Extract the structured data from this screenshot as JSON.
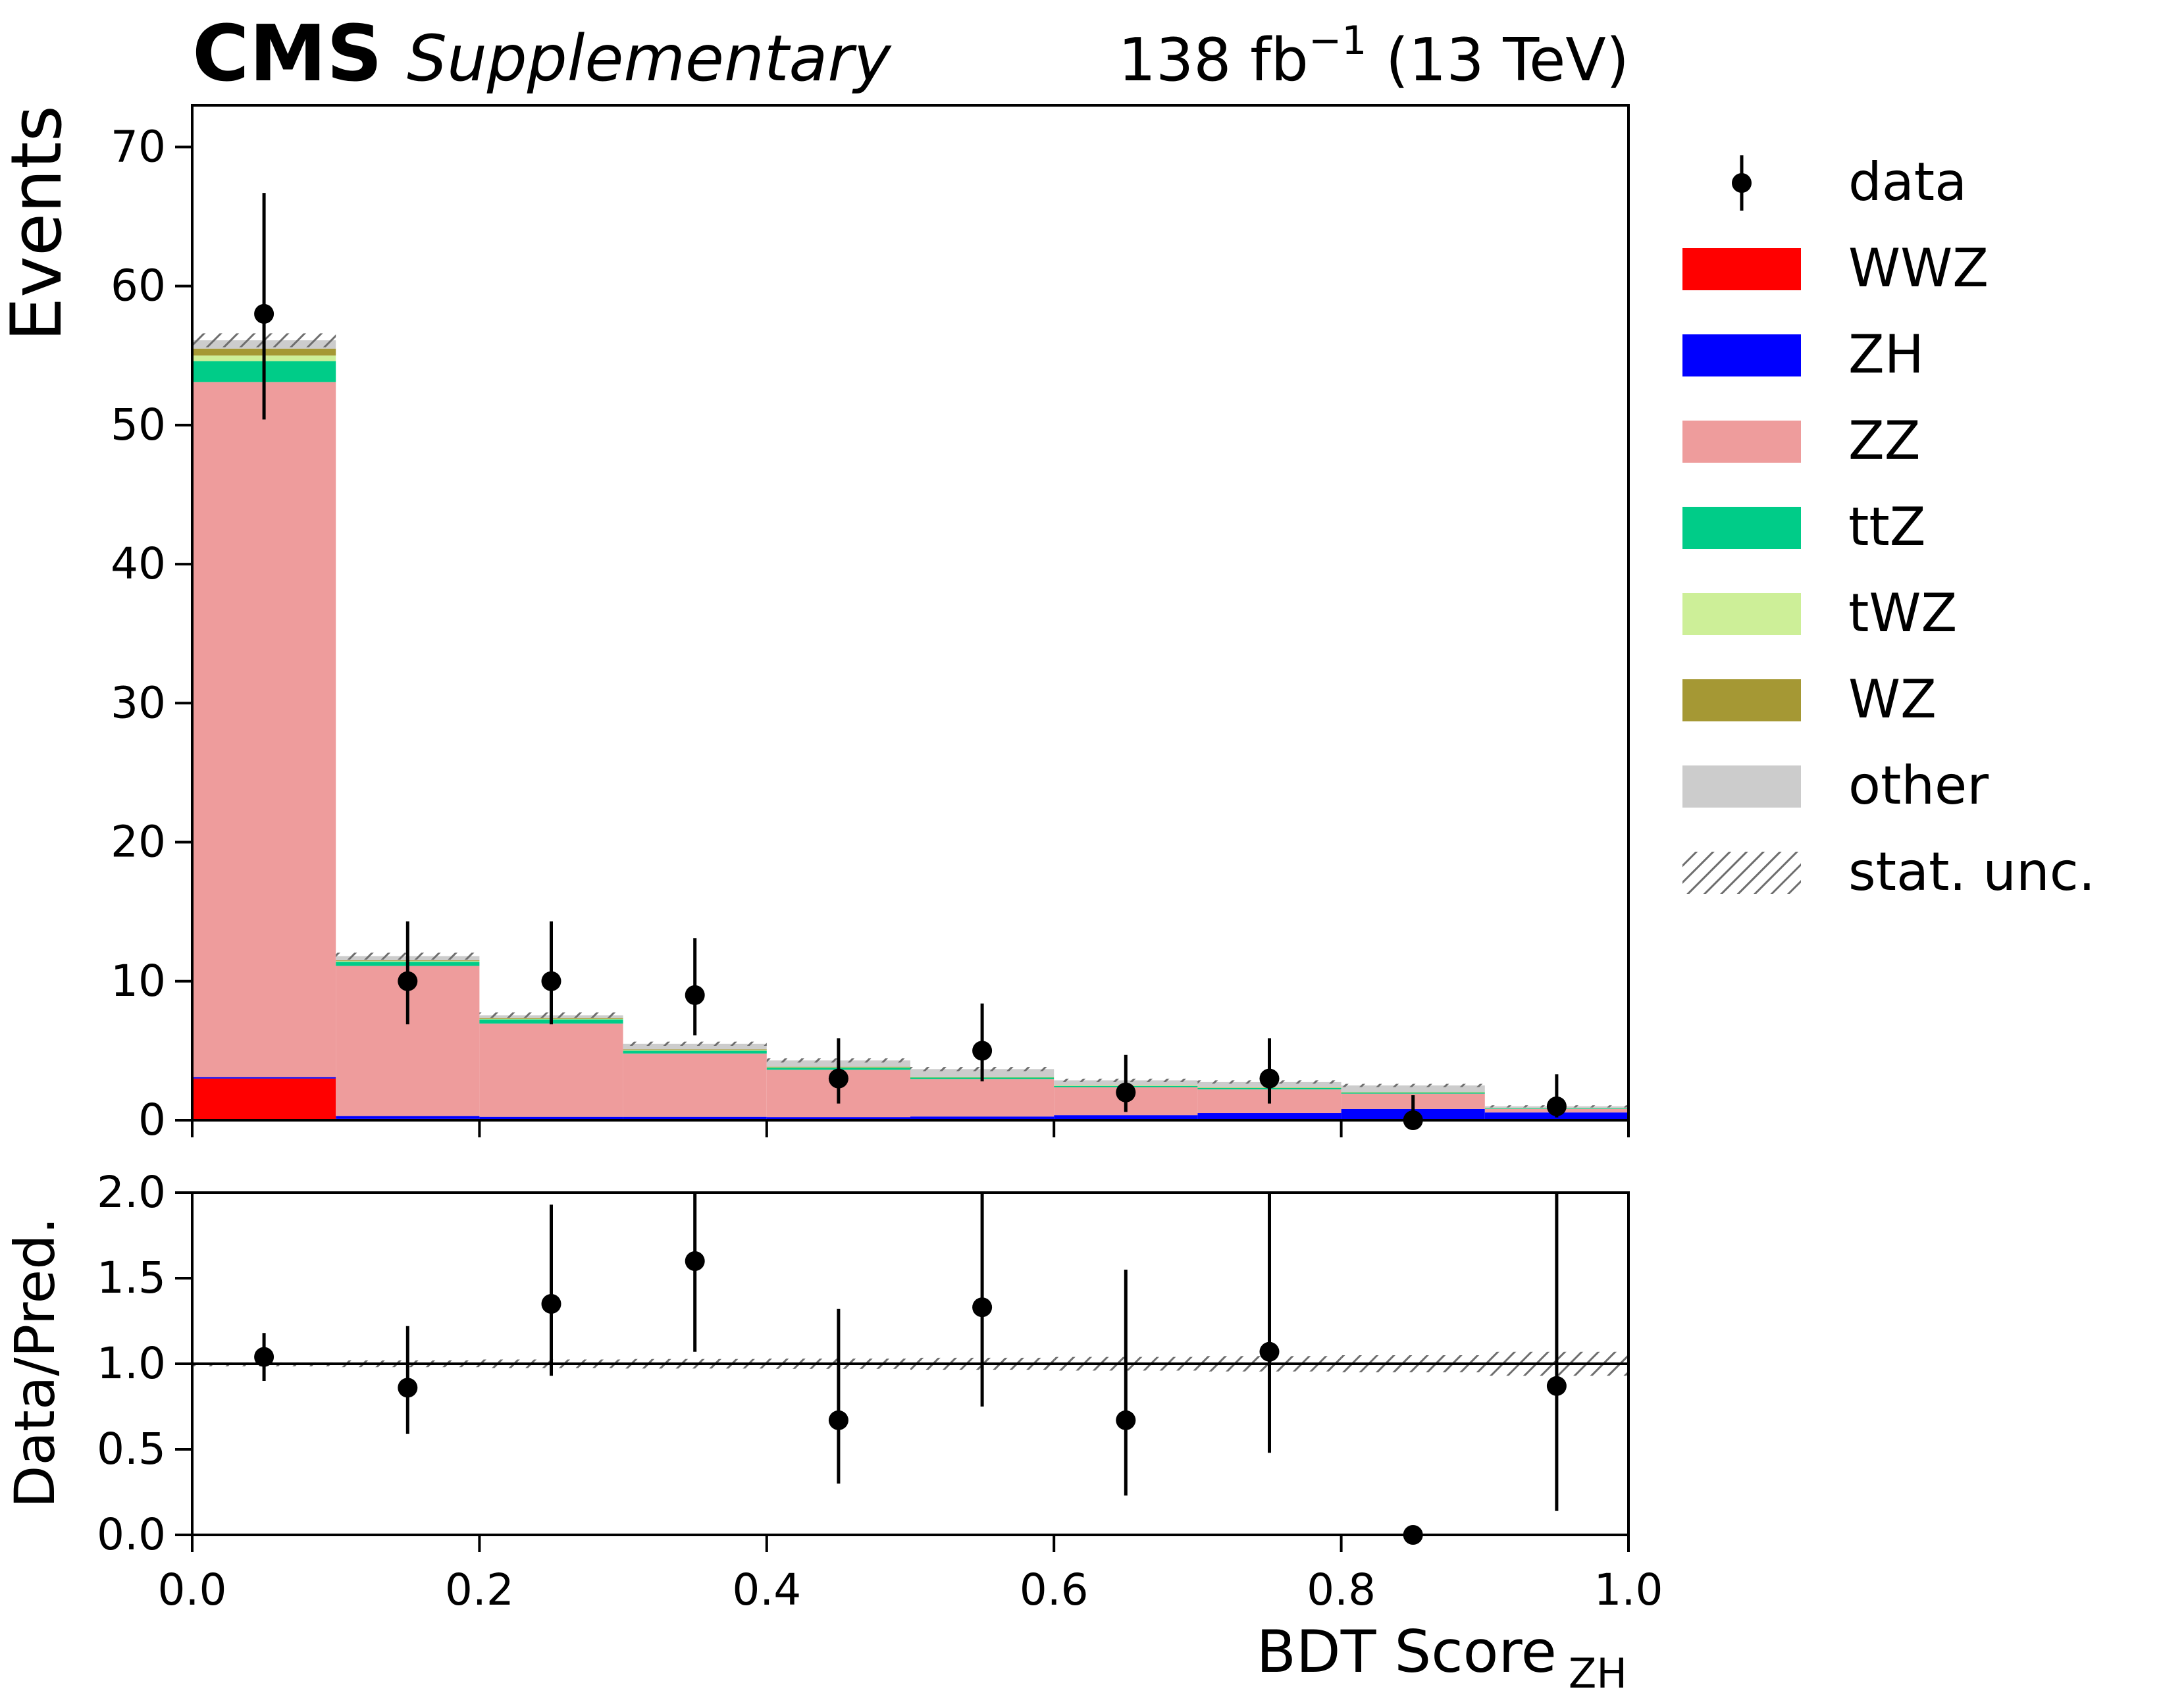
{
  "header": {
    "experiment": "CMS",
    "label": "Supplementary",
    "lumi_value": "138 fb",
    "lumi_exp": "−1",
    "lumi_energy": " (13 TeV)"
  },
  "legend": {
    "data_label": "data",
    "stat_label": "stat. unc."
  },
  "chart_data": [
    {
      "type": "bar",
      "stacked": true,
      "ylabel": "Events",
      "xlim": [
        0.0,
        1.0
      ],
      "ylim": [
        0,
        73
      ],
      "yticks": [
        0,
        10,
        20,
        30,
        40,
        50,
        60,
        70
      ],
      "bin_edges": [
        0.0,
        0.1,
        0.2,
        0.3,
        0.4,
        0.5,
        0.6,
        0.7,
        0.8,
        0.9,
        1.0
      ],
      "series": [
        {
          "name": "WWZ",
          "color": "#ff0000",
          "values": [
            3.0,
            0.1,
            0.05,
            0.05,
            0.03,
            0.02,
            0.02,
            0.02,
            0.01,
            0.01
          ]
        },
        {
          "name": "ZH",
          "color": "#0000ff",
          "values": [
            0.1,
            0.2,
            0.2,
            0.2,
            0.2,
            0.25,
            0.35,
            0.5,
            0.8,
            0.55
          ]
        },
        {
          "name": "ZZ",
          "color": "#ee9c9c",
          "values": [
            50.0,
            10.8,
            6.7,
            4.55,
            3.4,
            2.7,
            2.0,
            1.7,
            1.1,
            0.25
          ]
        },
        {
          "name": "ttZ",
          "color": "#00cc88",
          "values": [
            1.5,
            0.3,
            0.3,
            0.2,
            0.15,
            0.1,
            0.1,
            0.1,
            0.08,
            0.04
          ]
        },
        {
          "name": "tWZ",
          "color": "#cdef98",
          "values": [
            0.4,
            0.05,
            0.05,
            0.05,
            0.03,
            0.03,
            0.03,
            0.03,
            0.02,
            0.01
          ]
        },
        {
          "name": "WZ",
          "color": "#a59834",
          "values": [
            0.5,
            0.05,
            0.05,
            0.05,
            0.04,
            0.03,
            0.02,
            0.02,
            0.02,
            0.01
          ]
        },
        {
          "name": "other",
          "color": "#cccccc",
          "values": [
            0.6,
            0.3,
            0.2,
            0.4,
            0.45,
            0.55,
            0.35,
            0.38,
            0.47,
            0.13
          ]
        }
      ],
      "stat_unc": [
        0.5,
        0.25,
        0.2,
        0.15,
        0.15,
        0.15,
        0.12,
        0.12,
        0.12,
        0.08
      ],
      "data": {
        "name": "data",
        "x": [
          0.05,
          0.15,
          0.25,
          0.35,
          0.45,
          0.55,
          0.65,
          0.75,
          0.85,
          0.95
        ],
        "y": [
          58,
          10,
          10,
          9,
          3,
          5,
          2,
          3,
          0,
          1
        ],
        "err_low": [
          7.6,
          3.1,
          3.1,
          2.9,
          1.8,
          2.2,
          1.4,
          1.8,
          0,
          0.8
        ],
        "err_high": [
          8.7,
          4.3,
          4.3,
          4.1,
          2.9,
          3.4,
          2.7,
          2.9,
          1.8,
          2.3
        ]
      }
    },
    {
      "type": "scatter",
      "ylabel": "Data/Pred.",
      "xlabel": "BDT Score",
      "xlabel_sub": "ZH",
      "xlim": [
        0.0,
        1.0
      ],
      "ylim": [
        0.0,
        2.0
      ],
      "xticks": [
        "0.0",
        "0.2",
        "0.4",
        "0.6",
        "0.8",
        "1.0"
      ],
      "yticks": [
        "0.0",
        "0.5",
        "1.0",
        "1.5",
        "2.0"
      ],
      "reference_line": 1.0,
      "ratio": {
        "x": [
          0.05,
          0.15,
          0.25,
          0.35,
          0.45,
          0.55,
          0.65,
          0.75,
          0.85,
          0.95
        ],
        "y": [
          1.04,
          0.86,
          1.35,
          1.6,
          0.67,
          1.33,
          0.67,
          1.07,
          0.0,
          0.87
        ],
        "err_low": [
          0.14,
          0.27,
          0.42,
          0.53,
          0.37,
          0.58,
          0.44,
          0.59,
          0.0,
          0.73
        ],
        "err_high": [
          0.14,
          0.36,
          0.58,
          0.74,
          0.65,
          0.9,
          0.88,
          1.02,
          0.0,
          1.37
        ]
      },
      "stat_unc_rel": [
        0.008,
        0.02,
        0.025,
        0.028,
        0.03,
        0.035,
        0.04,
        0.045,
        0.05,
        0.07
      ]
    }
  ]
}
